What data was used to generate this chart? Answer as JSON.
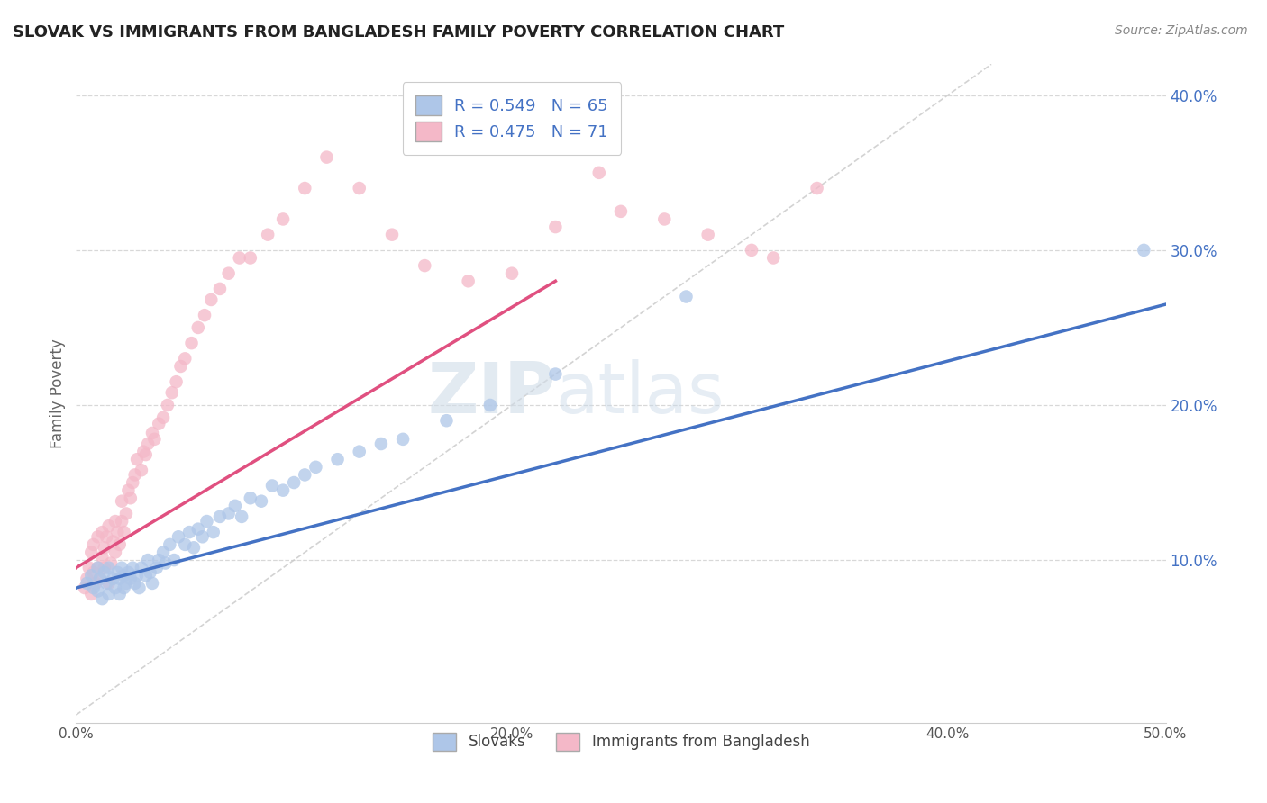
{
  "title": "SLOVAK VS IMMIGRANTS FROM BANGLADESH FAMILY POVERTY CORRELATION CHART",
  "source": "Source: ZipAtlas.com",
  "ylabel": "Family Poverty",
  "xlim": [
    0.0,
    0.5
  ],
  "ylim": [
    -0.005,
    0.42
  ],
  "xticks": [
    0.0,
    0.1,
    0.2,
    0.3,
    0.4,
    0.5
  ],
  "xticklabels": [
    "0.0%",
    "",
    "20.0%",
    "",
    "40.0%",
    "50.0%"
  ],
  "ytick_positions": [
    0.1,
    0.2,
    0.3,
    0.4
  ],
  "yticklabels": [
    "10.0%",
    "20.0%",
    "30.0%",
    "40.0%"
  ],
  "color_blue": "#aec6e8",
  "color_pink": "#f4b8c8",
  "color_line_blue": "#4472c4",
  "color_line_pink": "#e05080",
  "color_diag": "#c8c8c8",
  "background_color": "#ffffff",
  "grid_color": "#d8d8d8",
  "title_color": "#222222",
  "source_color": "#888888",
  "blue_scatter_x": [
    0.005,
    0.007,
    0.008,
    0.01,
    0.01,
    0.011,
    0.012,
    0.013,
    0.014,
    0.015,
    0.015,
    0.017,
    0.018,
    0.019,
    0.02,
    0.02,
    0.021,
    0.022,
    0.022,
    0.023,
    0.024,
    0.025,
    0.026,
    0.027,
    0.028,
    0.029,
    0.03,
    0.032,
    0.033,
    0.034,
    0.035,
    0.037,
    0.038,
    0.04,
    0.041,
    0.043,
    0.045,
    0.047,
    0.05,
    0.052,
    0.054,
    0.056,
    0.058,
    0.06,
    0.063,
    0.066,
    0.07,
    0.073,
    0.076,
    0.08,
    0.085,
    0.09,
    0.095,
    0.1,
    0.105,
    0.11,
    0.12,
    0.13,
    0.14,
    0.15,
    0.17,
    0.19,
    0.22,
    0.28,
    0.49
  ],
  "blue_scatter_y": [
    0.085,
    0.09,
    0.082,
    0.08,
    0.095,
    0.088,
    0.075,
    0.092,
    0.085,
    0.078,
    0.095,
    0.088,
    0.082,
    0.092,
    0.088,
    0.078,
    0.095,
    0.09,
    0.082,
    0.085,
    0.092,
    0.088,
    0.095,
    0.085,
    0.09,
    0.082,
    0.095,
    0.09,
    0.1,
    0.092,
    0.085,
    0.095,
    0.1,
    0.105,
    0.098,
    0.11,
    0.1,
    0.115,
    0.11,
    0.118,
    0.108,
    0.12,
    0.115,
    0.125,
    0.118,
    0.128,
    0.13,
    0.135,
    0.128,
    0.14,
    0.138,
    0.148,
    0.145,
    0.15,
    0.155,
    0.16,
    0.165,
    0.17,
    0.175,
    0.178,
    0.19,
    0.2,
    0.22,
    0.27,
    0.3
  ],
  "pink_scatter_x": [
    0.004,
    0.005,
    0.006,
    0.007,
    0.007,
    0.008,
    0.008,
    0.009,
    0.01,
    0.01,
    0.011,
    0.012,
    0.012,
    0.013,
    0.013,
    0.014,
    0.015,
    0.015,
    0.016,
    0.017,
    0.018,
    0.018,
    0.019,
    0.02,
    0.021,
    0.021,
    0.022,
    0.023,
    0.024,
    0.025,
    0.026,
    0.027,
    0.028,
    0.03,
    0.031,
    0.032,
    0.033,
    0.035,
    0.036,
    0.038,
    0.04,
    0.042,
    0.044,
    0.046,
    0.048,
    0.05,
    0.053,
    0.056,
    0.059,
    0.062,
    0.066,
    0.07,
    0.075,
    0.08,
    0.088,
    0.095,
    0.105,
    0.115,
    0.13,
    0.145,
    0.16,
    0.18,
    0.2,
    0.22,
    0.24,
    0.25,
    0.27,
    0.29,
    0.31,
    0.32,
    0.34
  ],
  "pink_scatter_y": [
    0.082,
    0.088,
    0.095,
    0.078,
    0.105,
    0.092,
    0.11,
    0.085,
    0.095,
    0.115,
    0.088,
    0.102,
    0.118,
    0.095,
    0.108,
    0.115,
    0.085,
    0.122,
    0.098,
    0.112,
    0.105,
    0.125,
    0.118,
    0.11,
    0.125,
    0.138,
    0.118,
    0.13,
    0.145,
    0.14,
    0.15,
    0.155,
    0.165,
    0.158,
    0.17,
    0.168,
    0.175,
    0.182,
    0.178,
    0.188,
    0.192,
    0.2,
    0.208,
    0.215,
    0.225,
    0.23,
    0.24,
    0.25,
    0.258,
    0.268,
    0.275,
    0.285,
    0.295,
    0.295,
    0.31,
    0.32,
    0.34,
    0.36,
    0.34,
    0.31,
    0.29,
    0.28,
    0.285,
    0.315,
    0.35,
    0.325,
    0.32,
    0.31,
    0.3,
    0.295,
    0.34
  ],
  "blue_line_x": [
    0.0,
    0.5
  ],
  "blue_line_y": [
    0.082,
    0.265
  ],
  "pink_line_x": [
    0.0,
    0.22
  ],
  "pink_line_y": [
    0.095,
    0.28
  ],
  "diag_line_x": [
    0.0,
    0.42
  ],
  "diag_line_y": [
    0.0,
    0.42
  ],
  "watermark_text": "ZIPatlas",
  "legend1_label": "R = 0.549   N = 65",
  "legend2_label": "R = 0.475   N = 71",
  "bottom_legend1": "Slovaks",
  "bottom_legend2": "Immigrants from Bangladesh"
}
